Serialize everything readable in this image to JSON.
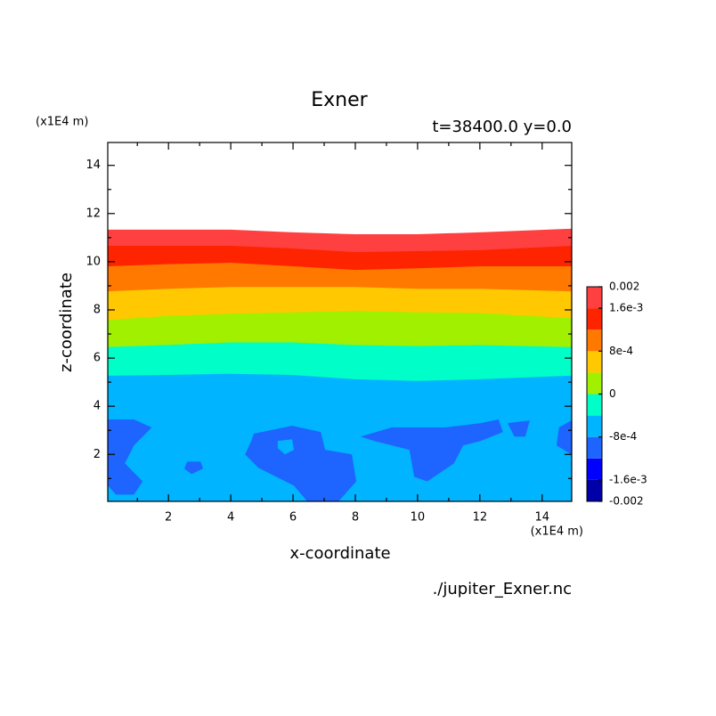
{
  "chart_data": {
    "type": "contour",
    "title": "Exner",
    "subtitle": "t=38400.0 y=0.0",
    "x_label": "x-coordinate",
    "y_label": "z-coordinate",
    "x_unit": "(x1E4 m)",
    "y_unit": "(x1E4 m)",
    "source": "./jupiter_Exner.nc",
    "xlim": [
      0.05,
      14.95
    ],
    "ylim": [
      0.05,
      14.95
    ],
    "xticks": [
      2,
      4,
      6,
      8,
      10,
      12,
      14
    ],
    "yticks": [
      2,
      4,
      6,
      8,
      10,
      12,
      14
    ],
    "xticks_minor": [
      1,
      3,
      5,
      7,
      9,
      11,
      13
    ],
    "yticks_minor": [
      1,
      3,
      5,
      7,
      9,
      11,
      13
    ],
    "levels": [
      -0.002,
      -0.0016,
      -0.0012,
      -0.0008,
      -0.0004,
      0,
      0.0004,
      0.0008,
      0.0012,
      0.0016,
      0.002
    ],
    "colors": [
      "#0000a8",
      "#0000ff",
      "#1e64ff",
      "#00b4ff",
      "#00ffc8",
      "#a0f000",
      "#ffc800",
      "#ff7800",
      "#ff2400",
      "#ff4040"
    ],
    "colorbar_ticks": [
      0.002,
      {
        "value": 0.0016,
        "label": "1.6e-3"
      },
      {
        "value": 0.0008,
        "label": "8e-4"
      },
      0,
      {
        "value": -0.0008,
        "label": "-8e-4"
      },
      {
        "value": -0.0016,
        "label": "-1.6e-3"
      },
      -0.002
    ],
    "contours": [
      {
        "level": 0.002,
        "closed": false,
        "x": [
          0.05,
          2,
          4,
          6,
          8,
          10,
          12,
          14.95
        ],
        "z": [
          11.33,
          11.33,
          11.33,
          11.22,
          11.14,
          11.14,
          11.22,
          11.37
        ]
      },
      {
        "level": 0.0016,
        "closed": false,
        "x": [
          0.05,
          2,
          4,
          6,
          8,
          10,
          12,
          14.95
        ],
        "z": [
          10.66,
          10.66,
          10.66,
          10.55,
          10.4,
          10.44,
          10.48,
          10.66
        ]
      },
      {
        "level": 0.0012,
        "closed": false,
        "x": [
          0.05,
          2,
          4,
          6,
          8,
          10,
          12,
          14.95
        ],
        "z": [
          9.81,
          9.9,
          9.96,
          9.81,
          9.66,
          9.73,
          9.81,
          9.81
        ]
      },
      {
        "level": 0.0008,
        "closed": false,
        "x": [
          0.05,
          2,
          4,
          6,
          8,
          10,
          12,
          14.95
        ],
        "z": [
          8.77,
          8.88,
          8.95,
          8.95,
          8.95,
          8.88,
          8.88,
          8.77
        ]
      },
      {
        "level": 0.0004,
        "closed": false,
        "x": [
          0.05,
          2,
          4,
          6,
          8,
          10,
          12,
          14.95
        ],
        "z": [
          7.58,
          7.75,
          7.84,
          7.9,
          7.95,
          7.9,
          7.87,
          7.65
        ]
      },
      {
        "level": 0,
        "closed": false,
        "x": [
          0.05,
          2,
          4,
          6,
          8,
          10,
          12,
          14.95
        ],
        "z": [
          6.46,
          6.55,
          6.65,
          6.65,
          6.54,
          6.5,
          6.54,
          6.46
        ]
      },
      {
        "level": -0.0004,
        "closed": false,
        "x": [
          0.05,
          2,
          4,
          6,
          8,
          10,
          12,
          14.95
        ],
        "z": [
          5.27,
          5.3,
          5.35,
          5.3,
          5.12,
          5.05,
          5.12,
          5.27
        ]
      },
      {
        "level": -0.0008,
        "closed": true,
        "x": [
          0.06,
          0.89,
          1.46,
          0.89,
          0.6,
          1.17,
          0.89,
          0.31,
          0.06
        ],
        "z": [
          3.45,
          3.45,
          3.12,
          2.37,
          1.63,
          0.88,
          0.33,
          0.33,
          0.7
        ]
      },
      {
        "level": -0.0008,
        "closed": true,
        "x": [
          2.6,
          3.03,
          3.11,
          2.74,
          2.51
        ],
        "z": [
          1.7,
          1.7,
          1.41,
          1.18,
          1.41
        ]
      },
      {
        "level": -0.0008,
        "closed": true,
        "x": [
          4.74,
          5.97,
          6.89,
          7.03,
          7.89,
          8.03,
          7.46,
          6.46,
          6.03,
          4.89,
          4.46,
          4.66
        ],
        "z": [
          2.86,
          3.19,
          2.93,
          2.19,
          2.0,
          0.88,
          0.05,
          0.05,
          0.7,
          1.44,
          2.0,
          2.56
        ]
      },
      {
        "level": -0.0004,
        "closed": true,
        "x": [
          5.51,
          5.97,
          6.03,
          5.74,
          5.51
        ],
        "z": [
          2.56,
          2.63,
          2.19,
          2.0,
          2.26
        ]
      },
      {
        "level": -0.0008,
        "closed": true,
        "x": [
          8.17,
          9.17,
          10.89,
          12.03,
          12.6,
          12.74,
          12.03,
          11.46,
          11.17,
          10.31,
          9.89,
          9.74,
          8.6
        ],
        "z": [
          2.74,
          3.12,
          3.12,
          3.3,
          3.45,
          2.93,
          2.56,
          2.37,
          1.63,
          0.88,
          1.07,
          2.19,
          2.56
        ]
      },
      {
        "level": -0.0008,
        "closed": true,
        "x": [
          12.89,
          13.6,
          13.46,
          13.11
        ],
        "z": [
          3.3,
          3.41,
          2.74,
          2.74
        ]
      },
      {
        "level": -0.0008,
        "closed": true,
        "x": [
          14.94,
          14.54,
          14.46,
          14.94
        ],
        "z": [
          3.41,
          3.12,
          2.37,
          2.0
        ]
      }
    ]
  }
}
